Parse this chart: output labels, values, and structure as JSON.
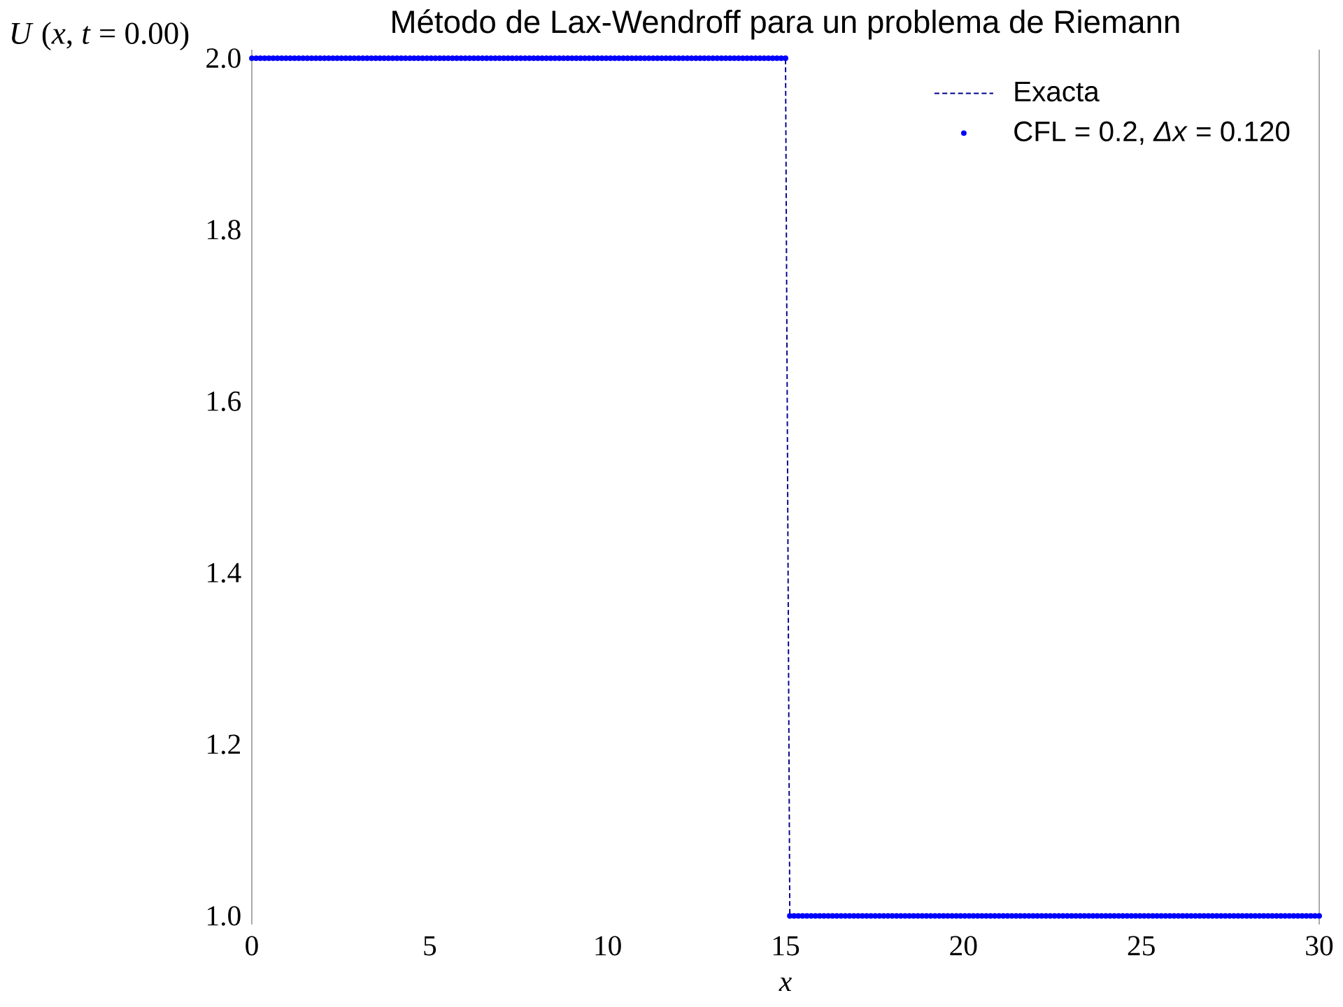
{
  "chart_data": {
    "type": "scatter",
    "title": "Método de Lax-Wendroff para un problema de Riemann",
    "xlabel": "x",
    "ylabel": "*U* (*x*, *t* = 0.00)",
    "xlim": [
      0,
      30
    ],
    "ylim": [
      0.99,
      2.01
    ],
    "xticks": [
      0,
      5,
      10,
      15,
      20,
      25,
      30
    ],
    "yticks": [
      {
        "value": 1,
        "label": "1.0"
      },
      1.2,
      1.4,
      1.6,
      1.8,
      {
        "value": 2,
        "label": "2.0"
      }
    ],
    "legend": "top right",
    "series": [
      {
        "name": "Exacta",
        "type": "line",
        "color": "#00008b",
        "line_style": "dashed",
        "marker": "none",
        "x": [
          0,
          15,
          15.12,
          30
        ],
        "values": [
          2,
          2,
          1,
          1
        ]
      },
      {
        "name": "CFL = 0.2, *Δx* = 0.120",
        "type": "scatter",
        "color": "#0000ff",
        "marker": "circle",
        "x": [
          0,
          0.12,
          0.24,
          0.36,
          0.48,
          0.6,
          0.72,
          0.84,
          0.96,
          1.08,
          1.2,
          1.32,
          1.44,
          1.56,
          1.68,
          1.8,
          1.92,
          2.04,
          2.16,
          2.28,
          2.4,
          2.52,
          2.64,
          2.76,
          2.88,
          3,
          3.12,
          3.24,
          3.36,
          3.48,
          3.6,
          3.72,
          3.84,
          3.96,
          4.08,
          4.2,
          4.32,
          4.44,
          4.56,
          4.68,
          4.8,
          4.92,
          5.04,
          5.16,
          5.28,
          5.4,
          5.52,
          5.64,
          5.76,
          5.88,
          6,
          6.12,
          6.24,
          6.36,
          6.48,
          6.6,
          6.72,
          6.84,
          6.96,
          7.08,
          7.2,
          7.32,
          7.44,
          7.56,
          7.68,
          7.8,
          7.92,
          8.04,
          8.16,
          8.28,
          8.4,
          8.52,
          8.64,
          8.76,
          8.88,
          9,
          9.12,
          9.24,
          9.36,
          9.48,
          9.6,
          9.72,
          9.84,
          9.96,
          10.08,
          10.2,
          10.32,
          10.44,
          10.56,
          10.68,
          10.8,
          10.92,
          11.04,
          11.16,
          11.28,
          11.4,
          11.52,
          11.64,
          11.76,
          11.88,
          12,
          12.12,
          12.24,
          12.36,
          12.48,
          12.6,
          12.72,
          12.84,
          12.96,
          13.08,
          13.2,
          13.32,
          13.44,
          13.56,
          13.68,
          13.8,
          13.92,
          14.04,
          14.16,
          14.28,
          14.4,
          14.52,
          14.64,
          14.76,
          14.88,
          15,
          15.12,
          15.24,
          15.36,
          15.48,
          15.6,
          15.72,
          15.84,
          15.96,
          16.08,
          16.2,
          16.32,
          16.44,
          16.56,
          16.68,
          16.8,
          16.92,
          17.04,
          17.16,
          17.28,
          17.4,
          17.52,
          17.64,
          17.76,
          17.88,
          18,
          18.12,
          18.24,
          18.36,
          18.48,
          18.6,
          18.72,
          18.84,
          18.96,
          19.08,
          19.2,
          19.32,
          19.44,
          19.56,
          19.68,
          19.8,
          19.92,
          20.04,
          20.16,
          20.28,
          20.4,
          20.52,
          20.64,
          20.76,
          20.88,
          21,
          21.12,
          21.24,
          21.36,
          21.48,
          21.6,
          21.72,
          21.84,
          21.96,
          22.08,
          22.2,
          22.32,
          22.44,
          22.56,
          22.68,
          22.8,
          22.92,
          23.04,
          23.16,
          23.28,
          23.4,
          23.52,
          23.64,
          23.76,
          23.88,
          24,
          24.12,
          24.24,
          24.36,
          24.48,
          24.6,
          24.72,
          24.84,
          24.96,
          25.08,
          25.2,
          25.32,
          25.44,
          25.56,
          25.68,
          25.8,
          25.92,
          26.04,
          26.16,
          26.28,
          26.4,
          26.52,
          26.64,
          26.76,
          26.88,
          27,
          27.12,
          27.24,
          27.36,
          27.48,
          27.6,
          27.72,
          27.84,
          27.96,
          28.08,
          28.2,
          28.32,
          28.44,
          28.56,
          28.68,
          28.8,
          28.92,
          29.04,
          29.16,
          29.28,
          29.4,
          29.52,
          29.64,
          29.76,
          29.88,
          30
        ],
        "values": [
          2,
          2,
          2,
          2,
          2,
          2,
          2,
          2,
          2,
          2,
          2,
          2,
          2,
          2,
          2,
          2,
          2,
          2,
          2,
          2,
          2,
          2,
          2,
          2,
          2,
          2,
          2,
          2,
          2,
          2,
          2,
          2,
          2,
          2,
          2,
          2,
          2,
          2,
          2,
          2,
          2,
          2,
          2,
          2,
          2,
          2,
          2,
          2,
          2,
          2,
          2,
          2,
          2,
          2,
          2,
          2,
          2,
          2,
          2,
          2,
          2,
          2,
          2,
          2,
          2,
          2,
          2,
          2,
          2,
          2,
          2,
          2,
          2,
          2,
          2,
          2,
          2,
          2,
          2,
          2,
          2,
          2,
          2,
          2,
          2,
          2,
          2,
          2,
          2,
          2,
          2,
          2,
          2,
          2,
          2,
          2,
          2,
          2,
          2,
          2,
          2,
          2,
          2,
          2,
          2,
          2,
          2,
          2,
          2,
          2,
          2,
          2,
          2,
          2,
          2,
          2,
          2,
          2,
          2,
          2,
          2,
          2,
          2,
          2,
          2,
          2,
          1,
          1,
          1,
          1,
          1,
          1,
          1,
          1,
          1,
          1,
          1,
          1,
          1,
          1,
          1,
          1,
          1,
          1,
          1,
          1,
          1,
          1,
          1,
          1,
          1,
          1,
          1,
          1,
          1,
          1,
          1,
          1,
          1,
          1,
          1,
          1,
          1,
          1,
          1,
          1,
          1,
          1,
          1,
          1,
          1,
          1,
          1,
          1,
          1,
          1,
          1,
          1,
          1,
          1,
          1,
          1,
          1,
          1,
          1,
          1,
          1,
          1,
          1,
          1,
          1,
          1,
          1,
          1,
          1,
          1,
          1,
          1,
          1,
          1,
          1,
          1,
          1,
          1,
          1,
          1,
          1,
          1,
          1,
          1,
          1,
          1,
          1,
          1,
          1,
          1,
          1,
          1,
          1,
          1,
          1,
          1,
          1,
          1,
          1,
          1,
          1,
          1,
          1,
          1,
          1,
          1,
          1,
          1,
          1,
          1,
          1,
          1,
          1,
          1,
          1,
          1,
          1,
          1,
          1,
          1,
          1,
          1,
          1,
          1,
          1
        ]
      }
    ]
  }
}
